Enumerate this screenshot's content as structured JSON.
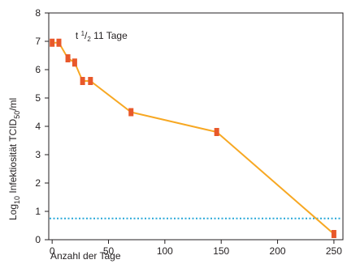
{
  "chart_data": {
    "type": "line",
    "title": "",
    "xlabel": "Anzahl der Tage",
    "ylabel": {
      "prefix": "Log",
      "prefix_sub": "10",
      "main": " Infektiosität TCID",
      "main_sub": "50",
      "suffix": "/ml"
    },
    "xlim": [
      -3,
      258
    ],
    "ylim": [
      0,
      8
    ],
    "xticks": [
      0,
      50,
      100,
      150,
      200,
      250
    ],
    "yticks": [
      0,
      1,
      2,
      3,
      4,
      5,
      6,
      7,
      8
    ],
    "grid": false,
    "legend": "none",
    "annotation": {
      "text_prefix": "t ",
      "frac_num": "1",
      "frac_den": "2",
      "text_suffix": " 11 Tage",
      "at": [
        2,
        7.2
      ]
    },
    "series": [
      {
        "x": [
          0,
          6,
          14,
          20,
          27,
          34,
          70,
          146,
          250
        ],
        "y": [
          6.95,
          6.95,
          6.4,
          6.25,
          5.6,
          5.6,
          4.5,
          3.8,
          0.2
        ]
      }
    ],
    "threshold": {
      "y": 0.75,
      "style": "dotted"
    },
    "colors": {
      "line": "#f7a823",
      "marker": "#e8582a",
      "threshold": "#29a8d8",
      "axis": "#231f20"
    }
  }
}
